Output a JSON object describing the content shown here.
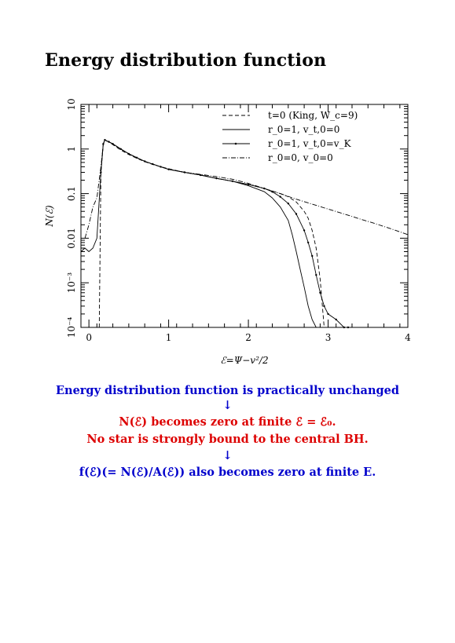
{
  "page": {
    "title": "Energy distribution function"
  },
  "chart_data": {
    "type": "line",
    "xlabel": "ℰ=Ψ−v²/2",
    "ylabel": "N(ℰ)",
    "xlim": [
      -0.1,
      4
    ],
    "ylim": [
      0.0001,
      10
    ],
    "yscale": "log",
    "x_ticks": [
      {
        "value": 0,
        "label": "0"
      },
      {
        "value": 1,
        "label": "1"
      },
      {
        "value": 2,
        "label": "2"
      },
      {
        "value": 3,
        "label": "3"
      },
      {
        "value": 4,
        "label": "4"
      }
    ],
    "y_ticks": [
      {
        "value": 10,
        "label": "10"
      },
      {
        "value": 1,
        "label": "1"
      },
      {
        "value": 0.1,
        "label": "0.1"
      },
      {
        "value": 0.01,
        "label": "0.01"
      },
      {
        "value": 0.001,
        "label": "10⁻³"
      },
      {
        "value": 0.0001,
        "label": "10⁻⁴"
      }
    ],
    "legend_position": "top-right",
    "series": [
      {
        "name": "t=0 (King, W_c=9)",
        "style": "dashed",
        "x": [
          0.13,
          0.15,
          0.18,
          0.2,
          0.25,
          0.3,
          0.4,
          0.5,
          0.6,
          0.7,
          0.8,
          0.9,
          1.0,
          1.2,
          1.4,
          1.6,
          1.8,
          2.0,
          2.2,
          2.4,
          2.5,
          2.6,
          2.7,
          2.75,
          2.8,
          2.85,
          2.9,
          2.95
        ],
        "y": [
          0.0001,
          0.3,
          1.3,
          1.55,
          1.45,
          1.25,
          0.95,
          0.75,
          0.62,
          0.52,
          0.45,
          0.4,
          0.36,
          0.3,
          0.26,
          0.22,
          0.19,
          0.16,
          0.13,
          0.1,
          0.085,
          0.065,
          0.04,
          0.028,
          0.015,
          0.006,
          0.0012,
          0.0001
        ]
      },
      {
        "name": "r_0=1, v_t,0=0",
        "style": "solid",
        "x": [
          -0.1,
          -0.05,
          0.0,
          0.05,
          0.1,
          0.15,
          0.18,
          0.2,
          0.25,
          0.3,
          0.4,
          0.5,
          0.6,
          0.7,
          0.8,
          0.9,
          1.0,
          1.2,
          1.4,
          1.6,
          1.8,
          2.0,
          2.2,
          2.3,
          2.4,
          2.5,
          2.55,
          2.6,
          2.65,
          2.7,
          2.75,
          2.8,
          2.85,
          2.9
        ],
        "y": [
          0.005,
          0.006,
          0.005,
          0.006,
          0.01,
          0.3,
          1.3,
          1.6,
          1.45,
          1.3,
          1.0,
          0.78,
          0.64,
          0.53,
          0.46,
          0.4,
          0.35,
          0.3,
          0.26,
          0.22,
          0.19,
          0.15,
          0.11,
          0.08,
          0.05,
          0.025,
          0.012,
          0.005,
          0.002,
          0.0008,
          0.0003,
          0.00015,
          0.0001,
          0.0001
        ]
      },
      {
        "name": "r_0=1, v_t,0=v_K",
        "style": "solid-dotted",
        "x": [
          0.15,
          0.18,
          0.2,
          0.25,
          0.3,
          0.4,
          0.5,
          0.6,
          0.7,
          0.8,
          0.9,
          1.0,
          1.2,
          1.4,
          1.6,
          1.8,
          2.0,
          2.2,
          2.3,
          2.4,
          2.5,
          2.6,
          2.7,
          2.75,
          2.8,
          2.85,
          2.9,
          2.95,
          3.0,
          3.1,
          3.2,
          3.25
        ],
        "y": [
          0.3,
          1.3,
          1.6,
          1.45,
          1.3,
          1.0,
          0.78,
          0.64,
          0.53,
          0.46,
          0.4,
          0.35,
          0.3,
          0.26,
          0.22,
          0.19,
          0.16,
          0.13,
          0.11,
          0.085,
          0.06,
          0.035,
          0.015,
          0.008,
          0.004,
          0.0015,
          0.0006,
          0.0003,
          0.0002,
          0.00015,
          0.0001,
          0.0001
        ]
      },
      {
        "name": "r_0=0, v_0=0",
        "style": "dash-dot",
        "x": [
          -0.05,
          0.0,
          0.05,
          0.1,
          0.15,
          0.18,
          0.2,
          0.25,
          0.3,
          0.4,
          0.5,
          0.6,
          0.7,
          0.8,
          0.9,
          1.0,
          1.2,
          1.4,
          1.6,
          1.8,
          2.0,
          2.2,
          2.4,
          2.6,
          2.8,
          3.0,
          3.2,
          3.4,
          3.6,
          3.8,
          4.0
        ],
        "y": [
          0.01,
          0.02,
          0.05,
          0.08,
          0.4,
          1.3,
          1.6,
          1.45,
          1.3,
          1.0,
          0.78,
          0.64,
          0.53,
          0.46,
          0.4,
          0.35,
          0.3,
          0.27,
          0.24,
          0.21,
          0.17,
          0.13,
          0.1,
          0.075,
          0.058,
          0.045,
          0.035,
          0.027,
          0.021,
          0.016,
          0.012
        ]
      }
    ]
  },
  "captions": [
    {
      "text": "Energy distribution function is practically unchanged",
      "color": "#0000cc"
    },
    {
      "text": "↓",
      "color": "#0000cc"
    },
    {
      "text": "N(ℰ) becomes zero at finite ℰ = ℰ₀.",
      "color": "#dd0000"
    },
    {
      "text": "No star is strongly bound to the central BH.",
      "color": "#dd0000"
    },
    {
      "text": "↓",
      "color": "#0000cc"
    },
    {
      "text": "f(ℰ)(= N(ℰ)/A(ℰ)) also becomes zero at finite E.",
      "color": "#0000cc"
    }
  ]
}
